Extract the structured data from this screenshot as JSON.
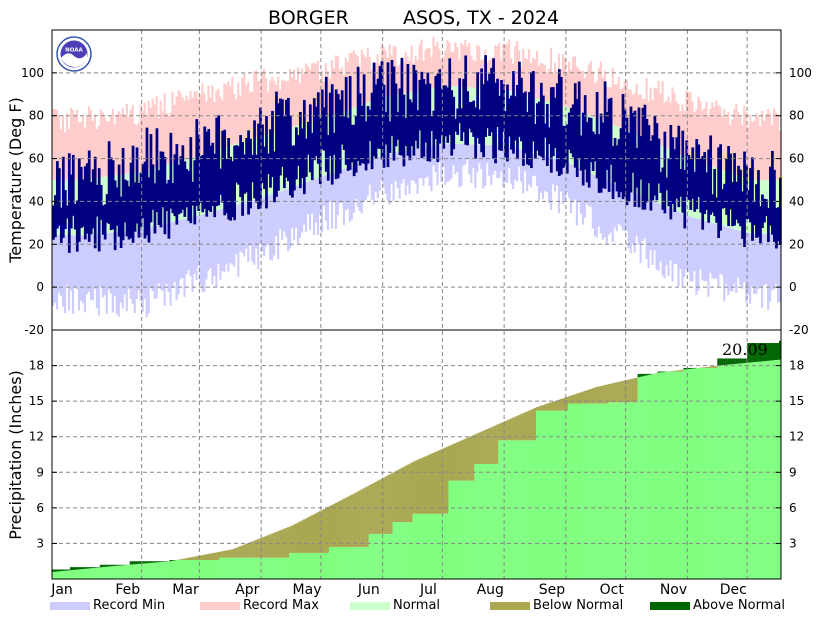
{
  "header": {
    "station": "BORGER",
    "network": "ASOS, TX - 2024"
  },
  "logo": {
    "icon": "noaa-logo-icon",
    "text": "NOAA"
  },
  "colors": {
    "record_min": "#ccccff",
    "record_max": "#ffcccc",
    "normal": "#ccffcc",
    "observed": "#000080",
    "precip_observed": "#80ff80",
    "below_normal": "#aaa752",
    "above_normal": "#006600"
  },
  "legend": [
    {
      "label": "Record Min",
      "color": "#ccccff"
    },
    {
      "label": "Record Max",
      "color": "#ffcccc"
    },
    {
      "label": "Normal",
      "color": "#ccffcc"
    },
    {
      "label": "Below Normal",
      "color": "#aaa752"
    },
    {
      "label": "Above Normal",
      "color": "#006600"
    }
  ],
  "chart_data": [
    {
      "type": "bar",
      "title": "BORGER ASOS, TX - 2024",
      "ylabel": "Temperature (Deg F)",
      "ylim": [
        -20,
        120
      ],
      "yticks": [
        -20,
        0,
        20,
        40,
        60,
        80,
        100
      ],
      "grid": true,
      "x_months": [
        "Jan",
        "Feb",
        "Mar",
        "Apr",
        "May",
        "Jun",
        "Jul",
        "Aug",
        "Sep",
        "Oct",
        "Nov",
        "Dec"
      ],
      "monthly_profile": {
        "record_max": [
          78,
          82,
          90,
          96,
          102,
          108,
          112,
          110,
          104,
          96,
          86,
          78
        ],
        "normal_high": [
          50,
          54,
          62,
          71,
          79,
          89,
          94,
          92,
          84,
          73,
          60,
          50
        ],
        "normal_low": [
          24,
          27,
          34,
          42,
          52,
          62,
          67,
          66,
          58,
          45,
          33,
          25
        ],
        "record_min": [
          -6,
          -8,
          4,
          16,
          32,
          44,
          54,
          52,
          38,
          20,
          4,
          -4
        ],
        "observed_high": [
          48,
          60,
          64,
          75,
          83,
          92,
          93,
          95,
          86,
          78,
          58,
          52
        ],
        "observed_low": [
          24,
          28,
          34,
          45,
          56,
          63,
          68,
          66,
          58,
          46,
          35,
          26
        ]
      }
    },
    {
      "type": "area",
      "ylabel": "Precipitation (Inches)",
      "ylim": [
        0,
        21
      ],
      "yticks": [
        3,
        6,
        9,
        12,
        15,
        18
      ],
      "grid": true,
      "annotation": "20.09",
      "series": [
        {
          "name": "Normal",
          "x_day": [
            1,
            32,
            60,
            91,
            121,
            152,
            182,
            213,
            244,
            274,
            305,
            335,
            366
          ],
          "values": [
            0.6,
            1.1,
            1.5,
            2.5,
            4.5,
            7.2,
            9.9,
            12.2,
            14.5,
            16.2,
            17.4,
            18.0,
            18.5
          ]
        },
        {
          "name": "Observed",
          "x_day": [
            1,
            10,
            25,
            40,
            60,
            85,
            110,
            120,
            140,
            160,
            172,
            182,
            200,
            213,
            225,
            244,
            260,
            280,
            295,
            305,
            318,
            335,
            350,
            366
          ],
          "values": [
            0.8,
            1.0,
            1.2,
            1.5,
            1.6,
            1.8,
            1.8,
            2.2,
            2.7,
            3.8,
            4.8,
            5.5,
            8.3,
            9.7,
            11.7,
            14.2,
            14.8,
            14.9,
            17.3,
            17.5,
            17.8,
            18.6,
            19.9,
            20.09
          ]
        }
      ]
    }
  ]
}
